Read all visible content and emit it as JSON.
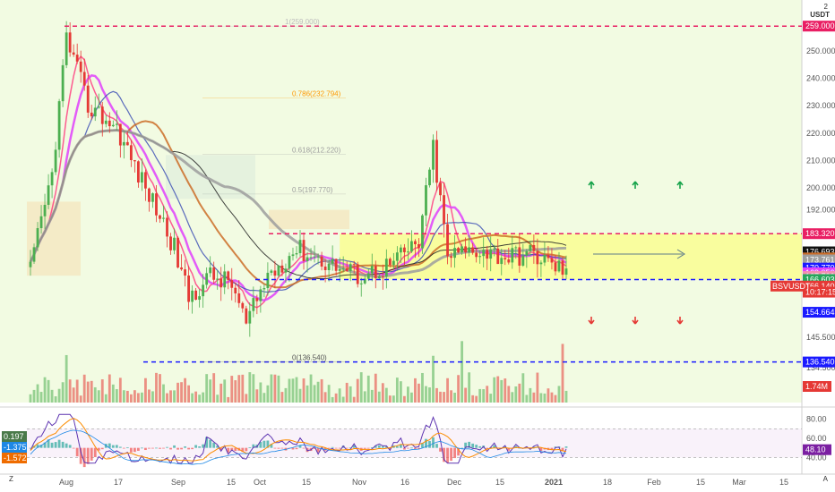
{
  "header": {
    "currency": "USDT",
    "scale_label": "2"
  },
  "footer": {
    "left_label": "Z",
    "right_label": "A"
  },
  "colors": {
    "up": "#4caf50",
    "down": "#e53935",
    "resistance": "#e91e63",
    "support": "#1a1aff",
    "zone_fill": "#ffff66",
    "background_tint": "#f2fbe2",
    "ma_black": "#222222",
    "ma_gray": "#9e9e9e",
    "ma_orange": "#cc6d28",
    "ma_magenta": "#e040fb",
    "ma_pink": "#ff4081",
    "ma_blue": "#3f51b5"
  },
  "chart_data": {
    "type": "candlestick",
    "symbol": "BSVUSDT",
    "x_ticks": [
      "Aug",
      "17",
      "Sep",
      "15",
      "Oct",
      "15",
      "Nov",
      "16",
      "Dec",
      "15",
      "2021",
      "18",
      "Feb",
      "15",
      "Mar",
      "15"
    ],
    "y_ticks": [
      "250.000",
      "240.000",
      "230.000",
      "220.000",
      "210.000",
      "200.000",
      "192.000",
      "176.693",
      "154.664",
      "145.500",
      "134.500"
    ],
    "ylim": [
      125,
      262
    ],
    "horizontal_levels": [
      {
        "name": "resistance-top",
        "value": 259.0,
        "label": "259.000",
        "style": "dashed",
        "color": "#e91e63"
      },
      {
        "name": "resistance-zone-top",
        "value": 183.32,
        "label": "183.320",
        "style": "dashed",
        "color": "#e91e63"
      },
      {
        "name": "support-zone-bottom",
        "value": 166.603,
        "label": "166.603",
        "style": "dashed",
        "color": "#1a1aff"
      },
      {
        "name": "support-bottom",
        "value": 136.54,
        "label": "136.540",
        "style": "dashed",
        "color": "#1a1aff"
      }
    ],
    "fibonacci": [
      {
        "label": "1(259.000)",
        "value": 259.0
      },
      {
        "label": "0.786(232.794)",
        "value": 232.794
      },
      {
        "label": "0.618(212.220)",
        "value": 212.22
      },
      {
        "label": "0.5(197.770)",
        "value": 197.77
      },
      {
        "label": "0(136.540)",
        "value": 136.54
      }
    ],
    "price_tags": [
      {
        "label": "259.000",
        "value": 259.0,
        "color": "#e91e63"
      },
      {
        "label": "183.320",
        "value": 183.32,
        "color": "#e91e63"
      },
      {
        "label": "176.693",
        "value": 176.693,
        "color": "#111111"
      },
      {
        "label": "174.466",
        "value": 174.466,
        "color": "#cc6d28"
      },
      {
        "label": "173.761",
        "value": 173.761,
        "color": "#9e9e9e"
      },
      {
        "label": "170.770",
        "value": 170.77,
        "color": "#1a1aff"
      },
      {
        "label": "169.056",
        "value": 169.056,
        "color": "#e040fb"
      },
      {
        "label": "167.706",
        "value": 167.706,
        "color": "#f48fb1"
      },
      {
        "label": "166.603",
        "value": 166.603,
        "color": "#26a65b"
      },
      {
        "label": "166.140",
        "value": 164.2,
        "color": "#e53935"
      },
      {
        "label": "10:17:15",
        "value": 162.0,
        "color": "#e53935"
      },
      {
        "label": "154.664",
        "value": 154.664,
        "color": "#1a1aff"
      },
      {
        "label": "136.540",
        "value": 136.54,
        "color": "#1a1aff"
      }
    ],
    "symbol_tag": {
      "label": "BSVUSDT",
      "color": "#e53935"
    },
    "volume_tag": {
      "label": "1.74M",
      "color": "#e53935"
    },
    "oscillator": {
      "y_ticks": [
        "80.00",
        "60.00",
        "40.00"
      ],
      "ylim": [
        30,
        90
      ],
      "tags": [
        {
          "label": "48.10",
          "value": 48.1,
          "color": "#7b1fa2"
        }
      ],
      "left_tags": [
        {
          "label": "0.197",
          "color": "#4a7a4a"
        },
        {
          "label": "-1.375",
          "color": "#1e88e5"
        },
        {
          "label": "-1.572",
          "color": "#ef6c00"
        }
      ]
    },
    "arrows": {
      "up_count": 3,
      "down_count": 3
    }
  }
}
